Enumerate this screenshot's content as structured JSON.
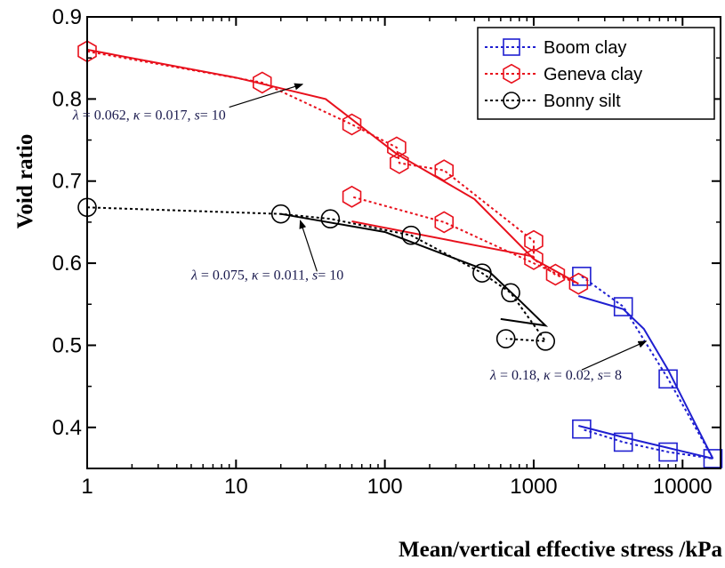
{
  "chart_data": {
    "type": "scatter",
    "xscale": "log",
    "xlim": [
      1,
      18000
    ],
    "ylim": [
      0.35,
      0.9
    ],
    "xlabel": "Mean/vertical effective stress /kPa",
    "ylabel": "Void ratio",
    "xticks": [
      1,
      10,
      100,
      1000,
      10000
    ],
    "xtick_labels": [
      "1",
      "10",
      "100",
      "1000",
      "10000"
    ],
    "yticks": [
      0.4,
      0.5,
      0.6,
      0.7,
      0.8,
      0.9
    ],
    "ytick_labels": [
      "0.4",
      "0.5",
      "0.6",
      "0.7",
      "0.8",
      "0.9"
    ],
    "legend_position": "top-right",
    "series": [
      {
        "name": "Boom clay",
        "color": "#1f1fd0",
        "marker": "square",
        "points": [
          [
            2100,
            0.584
          ],
          [
            4000,
            0.547
          ],
          [
            8000,
            0.459
          ],
          [
            16000,
            0.362
          ],
          [
            8000,
            0.37
          ],
          [
            4000,
            0.382
          ],
          [
            2100,
            0.398
          ]
        ],
        "model_curves": [
          [
            [
              2000,
              0.56
            ],
            [
              4000,
              0.544
            ],
            [
              5500,
              0.52
            ],
            [
              8000,
              0.47
            ],
            [
              16000,
              0.362
            ]
          ],
          [
            [
              2000,
              0.402
            ],
            [
              4000,
              0.388
            ],
            [
              8000,
              0.375
            ],
            [
              16000,
              0.362
            ]
          ]
        ]
      },
      {
        "name": "Geneva clay",
        "color": "#e8101c",
        "marker": "hexagon",
        "points": [
          [
            1,
            0.858
          ],
          [
            15,
            0.82
          ],
          [
            60,
            0.769
          ],
          [
            120,
            0.741
          ],
          [
            125,
            0.722
          ],
          [
            250,
            0.713
          ],
          [
            1000,
            0.627
          ],
          [
            1000,
            0.605
          ],
          [
            1400,
            0.586
          ],
          [
            2000,
            0.575
          ],
          [
            250,
            0.65
          ],
          [
            60,
            0.681
          ]
        ],
        "model_curves": [
          [
            [
              1,
              0.86
            ],
            [
              10,
              0.826
            ],
            [
              40,
              0.8
            ],
            [
              120,
              0.733
            ],
            [
              400,
              0.678
            ],
            [
              1000,
              0.605
            ],
            [
              2000,
              0.575
            ]
          ],
          [
            [
              1000,
              0.608
            ],
            [
              60,
              0.651
            ]
          ]
        ]
      },
      {
        "name": "Bonny silt",
        "color": "#000000",
        "marker": "circle",
        "points": [
          [
            1,
            0.668
          ],
          [
            20,
            0.66
          ],
          [
            43,
            0.654
          ],
          [
            150,
            0.634
          ],
          [
            450,
            0.588
          ],
          [
            700,
            0.564
          ],
          [
            1200,
            0.505
          ],
          [
            650,
            0.508
          ]
        ],
        "model_curves": [
          [
            [
              20,
              0.66
            ],
            [
              100,
              0.638
            ],
            [
              500,
              0.59
            ],
            [
              800,
              0.555
            ],
            [
              1200,
              0.524
            ],
            [
              600,
              0.532
            ]
          ]
        ]
      }
    ],
    "annotations": [
      {
        "lambda": "0.062",
        "kappa": "0.017",
        "s": "10",
        "text_x": 0.8,
        "text_y": 0.775,
        "arrow_from": [
          9,
          0.79
        ],
        "arrow_to": [
          28,
          0.818
        ]
      },
      {
        "lambda": "0.075",
        "kappa": "0.011",
        "s": "10",
        "text_x": 5,
        "text_y": 0.58,
        "arrow_from": [
          35,
          0.59
        ],
        "arrow_to": [
          27,
          0.652
        ]
      },
      {
        "lambda": "0.18",
        "kappa": "0.02",
        "s": "8",
        "text_x": 510,
        "text_y": 0.458,
        "arrow_from": [
          2100,
          0.47
        ],
        "arrow_to": [
          5700,
          0.505
        ]
      }
    ]
  }
}
